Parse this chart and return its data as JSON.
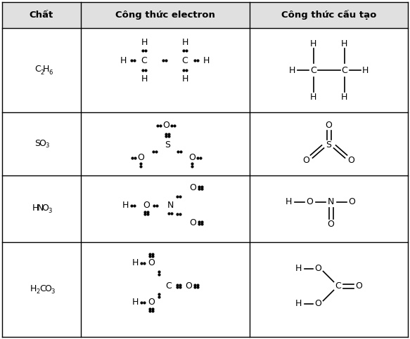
{
  "col1_header": "Chất",
  "col2_header": "Công thức electron",
  "col3_header": "Công thức cấu tạo",
  "bg_color": "#ffffff",
  "border_color": "#000000",
  "text_color": "#000000",
  "fig_w": 5.83,
  "fig_h": 4.83,
  "dpi": 100
}
